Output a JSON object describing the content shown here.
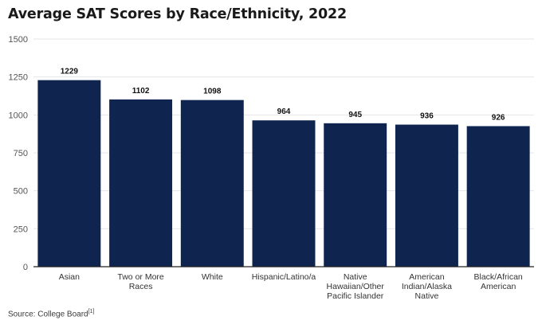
{
  "chart_data": {
    "type": "bar",
    "title": "Average SAT Scores by Race/Ethnicity, 2022",
    "xlabel": "",
    "ylabel": "",
    "categories": [
      "Asian",
      "Two or More Races",
      "White",
      "Hispanic/Latino/a",
      "Native Hawaiian/Other Pacific Islander",
      "American Indian/Alaska Native",
      "Black/African American"
    ],
    "category_lines": [
      [
        "Asian"
      ],
      [
        "Two or More",
        "Races"
      ],
      [
        "White"
      ],
      [
        "Hispanic/Latino/a"
      ],
      [
        "Native",
        "Hawaiian/Other",
        "Pacific Islander"
      ],
      [
        "American",
        "Indian/Alaska",
        "Native"
      ],
      [
        "Black/African",
        "American"
      ]
    ],
    "values": [
      1229,
      1102,
      1098,
      964,
      945,
      936,
      926
    ],
    "data_labels": [
      "1229",
      "1102",
      "1098",
      "964",
      "945",
      "936",
      "926"
    ],
    "ylim": [
      0,
      1500
    ],
    "yticks": [
      0,
      250,
      500,
      750,
      1000,
      1250,
      1500
    ],
    "grid": true,
    "legend": "none",
    "colors": {
      "bar": "#0f2550",
      "grid": "#e6e6e6",
      "axis": "#222222",
      "tick_text": "#555555"
    }
  },
  "footer": {
    "source_label": "Source: College Board",
    "source_ref": "[1]"
  }
}
